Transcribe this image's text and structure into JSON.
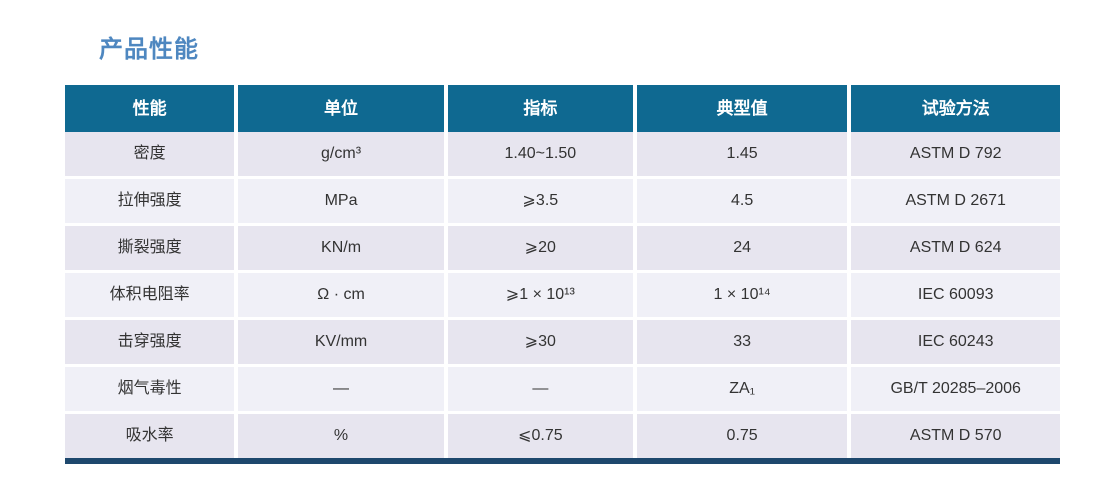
{
  "page": {
    "title": "产品性能",
    "title_color": "#4e87c0"
  },
  "table": {
    "columns": [
      "性能",
      "单位",
      "指标",
      "典型值",
      "试验方法"
    ],
    "rows": [
      {
        "property": "密度",
        "unit": "g/cm³",
        "spec": "1.40~1.50",
        "typical": "1.45",
        "method": "ASTM D 792"
      },
      {
        "property": "拉伸强度",
        "unit": "MPa",
        "spec": "⩾3.5",
        "typical": "4.5",
        "method": "ASTM D 2671"
      },
      {
        "property": "撕裂强度",
        "unit": "KN/m",
        "spec": "⩾20",
        "typical": "24",
        "method": "ASTM D 624"
      },
      {
        "property": "体积电阻率",
        "unit": "Ω · cm",
        "spec": "⩾1 × 10¹³",
        "typical": "1 × 10¹⁴",
        "method": "IEC 60093"
      },
      {
        "property": "击穿强度",
        "unit": "KV/mm",
        "spec": "⩾30",
        "typical": "33",
        "method": "IEC 60243"
      },
      {
        "property": "烟气毒性",
        "unit": "—",
        "spec": "—",
        "typical": "ZA₁",
        "method": "GB/T 20285–2006"
      },
      {
        "property": "吸水率",
        "unit": "%",
        "spec": "⩽0.75",
        "typical": "0.75",
        "method": "ASTM D 570"
      }
    ],
    "colors": {
      "header_bg": "#0f6991",
      "row_odd": "#e7e5ef",
      "row_even": "#f0f0f7",
      "bottom_border": "#1e486d",
      "cell_text": "#333333"
    }
  }
}
